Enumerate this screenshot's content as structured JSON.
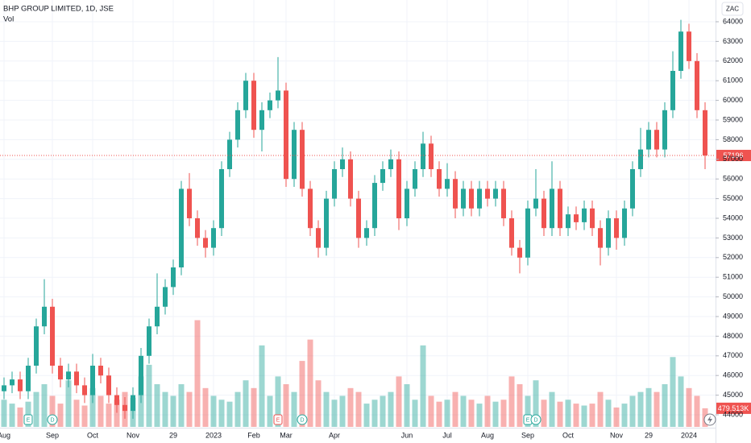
{
  "chart_data": {
    "type": "candlestick",
    "title": "BHP GROUP LIMITED, 1D, JSE",
    "volume_title": "Vol",
    "currency": "ZAC",
    "up_color": "#26a69a",
    "down_color": "#ef5350",
    "grid": true,
    "ylim": [
      43385,
      65107
    ],
    "yticks": [
      44000,
      45000,
      46000,
      47000,
      48000,
      49000,
      50000,
      51000,
      52000,
      53000,
      54000,
      55000,
      56000,
      57000,
      58000,
      59000,
      60000,
      61000,
      62000,
      63000,
      64000
    ],
    "categories": [
      "Aug",
      null,
      null,
      null,
      null,
      null,
      "Sep",
      null,
      null,
      null,
      null,
      "Oct",
      null,
      null,
      null,
      null,
      "Nov",
      null,
      null,
      null,
      null,
      "29",
      null,
      null,
      null,
      null,
      "2023",
      null,
      null,
      null,
      null,
      "Feb",
      null,
      null,
      null,
      "Mar",
      null,
      null,
      null,
      null,
      null,
      "Apr",
      null,
      null,
      null,
      null,
      null,
      null,
      null,
      null,
      "Jun",
      null,
      null,
      null,
      null,
      "Jul",
      null,
      null,
      null,
      null,
      "Aug",
      null,
      null,
      null,
      null,
      "Sep",
      null,
      null,
      null,
      null,
      "Oct",
      null,
      null,
      null,
      null,
      null,
      "Nov",
      null,
      null,
      null,
      "29",
      null,
      null,
      null,
      null,
      "2024",
      null,
      null
    ],
    "open": [
      45200,
      45500,
      45800,
      45200,
      46500,
      48500,
      49500,
      46500,
      45800,
      46200,
      45500,
      45000,
      46500,
      46000,
      45000,
      44500,
      44200,
      45000,
      47000,
      48500,
      49500,
      50500,
      51500,
      55500,
      54000,
      53000,
      52500,
      53500,
      56500,
      58000,
      59500,
      61000,
      58500,
      59500,
      60000,
      60500,
      56000,
      58500,
      55500,
      53500,
      52500,
      55000,
      56500,
      57000,
      55000,
      53000,
      53500,
      55800,
      56500,
      57000,
      54000,
      55500,
      56500,
      57800,
      56500,
      55500,
      56000,
      54500,
      55500,
      54500,
      55500,
      55000,
      55500,
      54000,
      52500,
      52000,
      54500,
      55000,
      53500,
      55500,
      53500,
      54200,
      53800,
      54500,
      53500,
      52500,
      54000,
      53000,
      54500,
      56500,
      57500,
      58500,
      57500,
      59500,
      61500,
      63500,
      62000,
      59500
    ],
    "high": [
      45900,
      46200,
      46200,
      46900,
      48900,
      50900,
      49900,
      46900,
      46600,
      46600,
      45900,
      47100,
      46900,
      46400,
      45400,
      44900,
      45400,
      47400,
      48900,
      51200,
      50900,
      51900,
      55900,
      56300,
      54400,
      53400,
      53900,
      56900,
      58400,
      59900,
      61400,
      61400,
      59900,
      60400,
      62200,
      60900,
      58900,
      58900,
      55900,
      53900,
      55400,
      56900,
      57600,
      57400,
      55400,
      53900,
      56200,
      56900,
      57500,
      57400,
      55900,
      56900,
      58400,
      58200,
      56900,
      56800,
      56400,
      55900,
      55900,
      55900,
      55900,
      55900,
      55900,
      54400,
      52900,
      54900,
      56500,
      55400,
      56900,
      55900,
      54600,
      54600,
      54900,
      54900,
      53900,
      54400,
      54400,
      54900,
      56900,
      58600,
      58900,
      58900,
      59900,
      62500,
      64100,
      63900,
      62400,
      59900
    ],
    "low": [
      44800,
      45100,
      44800,
      44800,
      46100,
      48100,
      46100,
      45400,
      45400,
      45100,
      44600,
      44600,
      45600,
      44600,
      44100,
      43800,
      43800,
      44600,
      46600,
      48100,
      49100,
      50100,
      51100,
      53600,
      52600,
      52000,
      52100,
      53100,
      56100,
      57600,
      59100,
      58100,
      57400,
      59100,
      59600,
      55600,
      55600,
      55100,
      53100,
      52000,
      52100,
      54600,
      56100,
      54600,
      52500,
      52600,
      53100,
      55400,
      56100,
      53400,
      53600,
      55100,
      56100,
      56100,
      55100,
      55100,
      54000,
      54100,
      54100,
      54100,
      54600,
      54600,
      53600,
      52100,
      51200,
      51600,
      54100,
      53100,
      53100,
      53100,
      53100,
      53400,
      53400,
      53100,
      51600,
      52100,
      52400,
      52600,
      54100,
      56100,
      57100,
      57100,
      57100,
      59100,
      61100,
      61600,
      59100,
      56500
    ],
    "close": [
      45500,
      45800,
      45200,
      46500,
      48500,
      49500,
      46500,
      45800,
      46200,
      45500,
      45000,
      46500,
      46000,
      45000,
      44500,
      44200,
      45000,
      47000,
      48500,
      49500,
      50500,
      51500,
      55500,
      54000,
      53000,
      52500,
      53500,
      56500,
      58000,
      59500,
      61000,
      58500,
      59500,
      60000,
      60500,
      56000,
      58500,
      55500,
      53500,
      52500,
      55000,
      56500,
      57000,
      55000,
      53000,
      53500,
      55800,
      56500,
      57000,
      54000,
      55500,
      56500,
      57800,
      56500,
      55500,
      56000,
      54500,
      55500,
      54500,
      55500,
      55000,
      55500,
      54000,
      52500,
      52000,
      54500,
      55000,
      53500,
      55500,
      53500,
      54200,
      53800,
      54500,
      53500,
      52500,
      54000,
      53000,
      54500,
      56500,
      57500,
      58500,
      57500,
      59500,
      61500,
      63500,
      62000,
      59500,
      57196
    ],
    "volume": {
      "ylim": [
        0,
        11000000
      ],
      "last_label": "479.513K",
      "values": [
        700000,
        600000,
        500000,
        650000,
        900000,
        1100000,
        800000,
        600000,
        1200000,
        700000,
        550000,
        1000000,
        800000,
        600000,
        700000,
        900000,
        750000,
        1300000,
        1600000,
        1100000,
        900000,
        800000,
        1100000,
        900000,
        2750000,
        1000000,
        800000,
        700000,
        650000,
        900000,
        1200000,
        1000000,
        2100000,
        800000,
        1300000,
        1100000,
        900000,
        1700000,
        2250000,
        1200000,
        900000,
        700000,
        800000,
        1000000,
        900000,
        600000,
        700000,
        800000,
        900000,
        1300000,
        1100000,
        700000,
        2100000,
        800000,
        650000,
        700000,
        900000,
        800000,
        700000,
        600000,
        800000,
        650000,
        700000,
        1300000,
        1100000,
        800000,
        1200000,
        700000,
        900000,
        650000,
        700000,
        600000,
        550000,
        600000,
        900000,
        700000,
        500000,
        600000,
        800000,
        900000,
        1000000,
        900000,
        1100000,
        1800000,
        1300000,
        1000000,
        800000,
        479513
      ]
    },
    "events": [
      {
        "label": "E",
        "index": 3,
        "color": "#26a69a"
      },
      {
        "label": "D",
        "index": 6,
        "color": "#26a69a"
      },
      {
        "label": "E",
        "index": 34,
        "color": "#ef5350"
      },
      {
        "label": "D",
        "index": 37,
        "color": "#26a69a"
      },
      {
        "label": "E",
        "index": 65,
        "color": "#26a69a"
      },
      {
        "label": "D",
        "index": 66,
        "color": "#26a69a"
      }
    ]
  }
}
